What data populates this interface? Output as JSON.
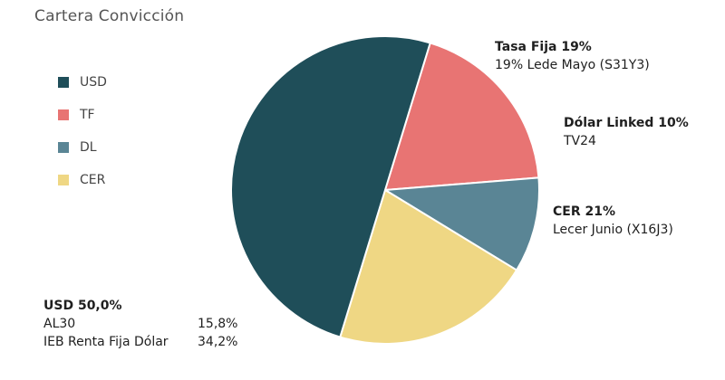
{
  "title": "Cartera Convicción",
  "chart_data": {
    "type": "pie",
    "categories": [
      "USD",
      "TF",
      "DL",
      "CER"
    ],
    "values": [
      50,
      19,
      10,
      21
    ],
    "colors": [
      "#1f4e59",
      "#e87473",
      "#5a8595",
      "#efd784"
    ],
    "legend": {
      "placement": "left",
      "items": [
        "USD",
        "TF",
        "DL",
        "CER"
      ]
    },
    "annotations": {
      "tf": {
        "head": "Tasa Fija 19%",
        "detail": "19% Lede Mayo  (S31Y3)"
      },
      "dl": {
        "head": "Dólar Linked  10%",
        "detail": "TV24"
      },
      "cer": {
        "head": "CER  21%",
        "detail": "Lecer Junio (X16J3)"
      },
      "usd": {
        "head": "USD 50,0%",
        "rows": [
          {
            "name": "AL30",
            "pct": "15,8%"
          },
          {
            "name": "IEB Renta Fija Dólar",
            "pct": "34,2%"
          }
        ]
      }
    }
  }
}
